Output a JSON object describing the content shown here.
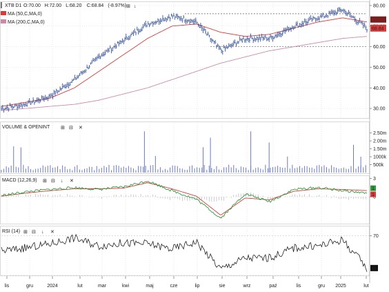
{
  "header": {
    "symbol": "XTB",
    "timeframe": "D1",
    "open": "O:70.00",
    "high": "H:72.00",
    "low": "L:68.20",
    "close": "C:68.84",
    "change": "(-8.97%)",
    "price_label": "68.84"
  },
  "panels": {
    "price": {
      "ma50_label": "MA (50,C,MA,0)",
      "ma200_label": "MA (200,C,MA,0)",
      "y_ticks": [
        "80.00",
        "70.00",
        "60.00",
        "50.00",
        "40.00",
        "30.00"
      ]
    },
    "volume": {
      "title": "VOLUME & OPENINT",
      "y_ticks": [
        "2.50m",
        "2.00m",
        "1.50m",
        "1000k",
        "500k"
      ]
    },
    "macd": {
      "title": "MACD (12,26,9)",
      "y_ticks": [
        "3",
        "0"
      ],
      "badge_top": "1",
      "badge_bottom": "1"
    },
    "rsi": {
      "title": "RSI (14)",
      "y_ticks": [
        "70"
      ],
      "value_label": "38"
    }
  },
  "x_axis": {
    "labels": [
      "lis",
      "gru",
      "2024",
      "lut",
      "mar",
      "kwi",
      "maj",
      "cze",
      "lip",
      "sie",
      "wrz",
      "paź",
      "lis",
      "gru",
      "2025",
      "lut"
    ]
  },
  "colors": {
    "price": "#1f3f8f",
    "ma50": "#d83a3a",
    "ma200": "#c98aa8",
    "volume": "#6a7ac0",
    "macd_green": "#2b9a3b",
    "macd_red": "#d83a3a",
    "rsi": "#222222",
    "price_badge": "#d83a3a",
    "macd_badge_top": "#2b9a3b",
    "macd_badge_bottom": "#d83a3a",
    "rsi_badge": "#111111"
  },
  "chart_data": [
    {
      "type": "line",
      "name": "price",
      "ylim": [
        25,
        82
      ],
      "x": [
        "2023-11",
        "2023-12",
        "2024-01",
        "2024-02",
        "2024-03",
        "2024-04",
        "2024-05",
        "2024-06",
        "2024-07",
        "2024-08",
        "2024-09",
        "2024-10",
        "2024-11",
        "2024-12",
        "2025-01",
        "2025-02"
      ],
      "series": [
        {
          "name": "MA (50,C,MA,0)",
          "values": [
            31,
            33,
            35,
            40,
            48,
            56,
            64,
            70,
            71,
            67,
            65,
            66,
            69,
            72,
            74,
            72
          ]
        },
        {
          "name": "MA (200,C,MA,0)",
          "values": [
            29,
            30,
            31,
            32,
            34,
            37,
            40,
            44,
            48,
            52,
            55,
            58,
            60,
            62,
            64,
            65
          ]
        },
        {
          "values": [
            30,
            32,
            36,
            44,
            55,
            63,
            71,
            75,
            72,
            58,
            64,
            64,
            70,
            74,
            78,
            69
          ]
        }
      ]
    },
    {
      "type": "bar",
      "name": "volume",
      "x": [
        "2023-11",
        "2023-12",
        "2024-01",
        "2024-02",
        "2024-03",
        "2024-04",
        "2024-05",
        "2024-06",
        "2024-07",
        "2024-08",
        "2024-09",
        "2024-10",
        "2024-11",
        "2024-12",
        "2025-01",
        "2025-02"
      ],
      "values": [
        250,
        300,
        400,
        2600,
        450,
        400,
        500,
        350,
        1900,
        2200,
        2600,
        300,
        350,
        400,
        800,
        1000
      ],
      "ylim": [
        0,
        2700
      ]
    },
    {
      "type": "line",
      "name": "macd",
      "x": [
        "2023-11",
        "2023-12",
        "2024-01",
        "2024-02",
        "2024-03",
        "2024-04",
        "2024-05",
        "2024-06",
        "2024-07",
        "2024-08",
        "2024-09",
        "2024-10",
        "2024-11",
        "2024-12",
        "2025-01",
        "2025-02"
      ],
      "series": [
        {
          "values": [
            0.2,
            0.8,
            1.2,
            1.5,
            1.2,
            1.6,
            2.6,
            1.0,
            -0.4,
            -3.5,
            0.5,
            -0.8,
            1.2,
            1.5,
            1.0,
            0.6
          ]
        },
        {
          "values": [
            0.1,
            0.6,
            1.0,
            1.3,
            1.3,
            1.4,
            2.3,
            1.3,
            0.1,
            -3.0,
            -0.2,
            -0.5,
            0.9,
            1.3,
            1.2,
            1.0
          ]
        }
      ],
      "ylim": [
        -4.5,
        3.5
      ]
    },
    {
      "type": "line",
      "name": "rsi",
      "x": [
        "2023-11",
        "2023-12",
        "2024-01",
        "2024-02",
        "2024-03",
        "2024-04",
        "2024-05",
        "2024-06",
        "2024-07",
        "2024-08",
        "2024-09",
        "2024-10",
        "2024-11",
        "2024-12",
        "2025-01",
        "2025-02"
      ],
      "series": [
        {
          "values": [
            55,
            58,
            62,
            68,
            60,
            63,
            62,
            57,
            64,
            37,
            48,
            48,
            58,
            60,
            66,
            38
          ]
        }
      ],
      "ylim": [
        30,
        80
      ]
    }
  ]
}
